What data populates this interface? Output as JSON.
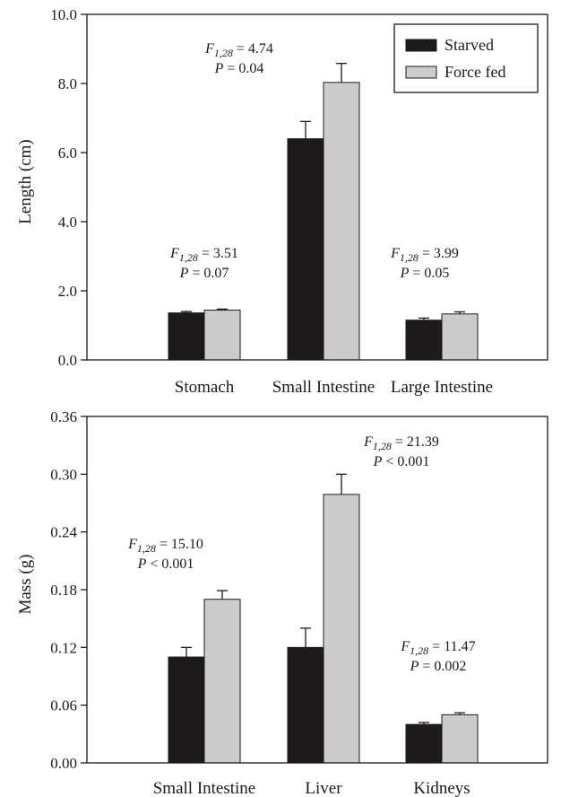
{
  "chart_data": [
    {
      "type": "bar",
      "ylabel": "Length (cm)",
      "ylim": [
        0,
        10
      ],
      "yticks": [
        "0.0",
        "2.0",
        "4.0",
        "6.0",
        "8.0",
        "10.0"
      ],
      "categories": [
        "Stomach",
        "Small Intestine",
        "Large Intestine"
      ],
      "series": [
        {
          "name": "Starved",
          "color": "#1e1a1b",
          "values": [
            1.36,
            6.4,
            1.15
          ],
          "errors": [
            0.04,
            0.5,
            0.06
          ]
        },
        {
          "name": "Force fed",
          "color": "#cccccc",
          "values": [
            1.44,
            8.03,
            1.33
          ],
          "errors": [
            0.03,
            0.55,
            0.06
          ]
        }
      ],
      "legend": {
        "position": "top-right",
        "entries": [
          "Starved",
          "Force fed"
        ]
      },
      "annotations": [
        {
          "f_label": "F",
          "f_sub": "1,28",
          "f_value": " = 3.51",
          "p_label": "P",
          "p_value": " = 0.07"
        },
        {
          "f_label": "F",
          "f_sub": "1,28",
          "f_value": " = 4.74",
          "p_label": "P",
          "p_value": " = 0.04"
        },
        {
          "f_label": "F",
          "f_sub": "1,28",
          "f_value": " = 3.99",
          "p_label": "P",
          "p_value": " = 0.05"
        }
      ]
    },
    {
      "type": "bar",
      "ylabel": "Mass (g)",
      "ylim": [
        0,
        0.36
      ],
      "yticks": [
        "0.00",
        "0.06",
        "0.12",
        "0.18",
        "0.24",
        "0.30",
        "0.36"
      ],
      "categories": [
        "Small Intestine",
        "Liver",
        "Kidneys"
      ],
      "series": [
        {
          "name": "Starved",
          "color": "#1e1a1b",
          "values": [
            0.11,
            0.12,
            0.04
          ],
          "errors": [
            0.01,
            0.02,
            0.002
          ]
        },
        {
          "name": "Force fed",
          "color": "#cccccc",
          "values": [
            0.17,
            0.279,
            0.05
          ],
          "errors": [
            0.009,
            0.021,
            0.002
          ]
        }
      ],
      "annotations": [
        {
          "f_label": "F",
          "f_sub": "1,28",
          "f_value": " = 15.10",
          "p_label": "P",
          "p_value": " < 0.001"
        },
        {
          "f_label": "F",
          "f_sub": "1,28",
          "f_value": " = 21.39",
          "p_label": "P",
          "p_value": " < 0.001"
        },
        {
          "f_label": "F",
          "f_sub": "1,28",
          "f_value": " = 11.47",
          "p_label": "P",
          "p_value": " = 0.002"
        }
      ]
    }
  ]
}
